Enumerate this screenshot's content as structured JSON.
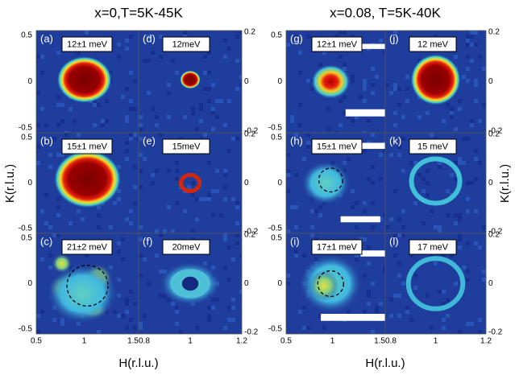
{
  "figure": {
    "groups": [
      {
        "title": "x=0,T=5K-45K"
      },
      {
        "title": "x=0.08, T=5K-40K"
      }
    ],
    "panels": [
      {
        "letter": "(a)",
        "energy": "12±1 meV"
      },
      {
        "letter": "(b)",
        "energy": "15±1 meV"
      },
      {
        "letter": "(c)",
        "energy": "21±2 meV"
      },
      {
        "letter": "(d)",
        "energy": "12meV"
      },
      {
        "letter": "(e)",
        "energy": "15meV"
      },
      {
        "letter": "(f)",
        "energy": "20meV"
      },
      {
        "letter": "(g)",
        "energy": "12±1 meV"
      },
      {
        "letter": "(h)",
        "energy": "15±1 meV"
      },
      {
        "letter": "(i)",
        "energy": "17±1 meV"
      },
      {
        "letter": "(j)",
        "energy": "12 meV"
      },
      {
        "letter": "(k)",
        "energy": "15 meV"
      },
      {
        "letter": "(l)",
        "energy": "17 meV"
      }
    ],
    "axes": {
      "x_label": "H(r.l.u.)",
      "y_label": "K(r.l.u.)",
      "xticks": [
        "0.5",
        "1",
        "1.50.8",
        "1",
        "1.2"
      ],
      "left_yticks": [
        "0.5",
        "0",
        "-0.5"
      ],
      "right_yticks": [
        "0.2",
        "0",
        "-0.2"
      ]
    }
  }
}
